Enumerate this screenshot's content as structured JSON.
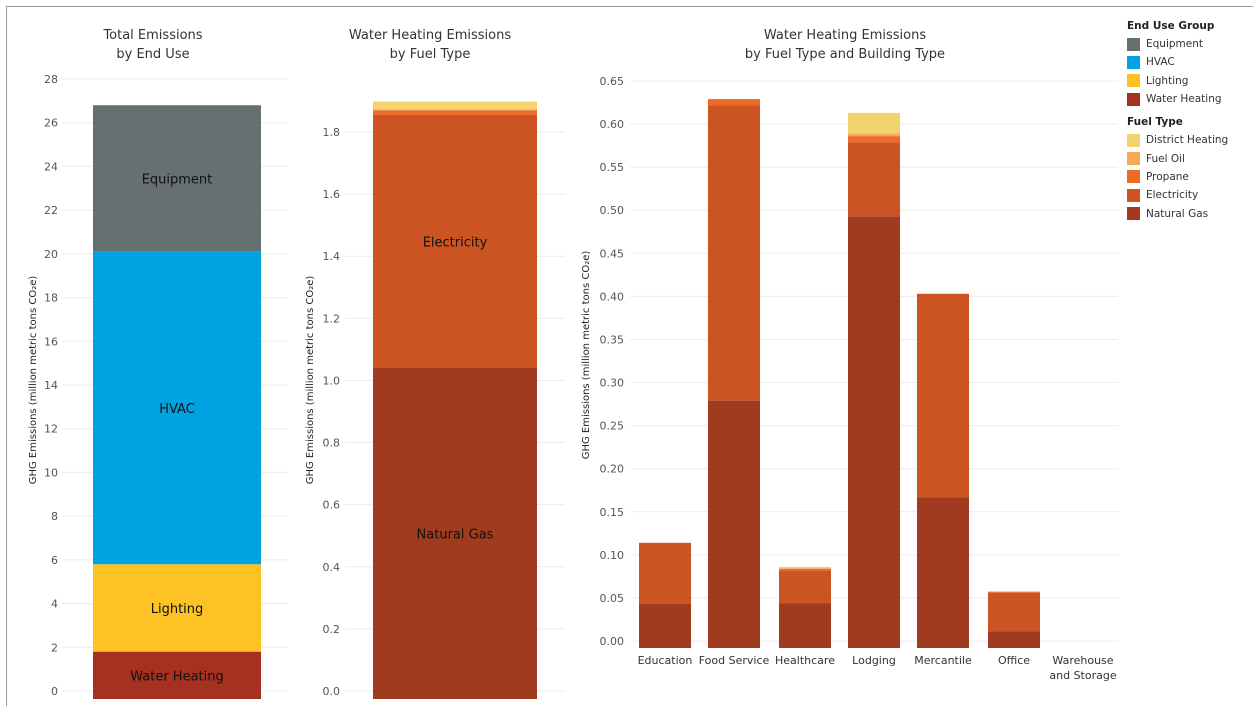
{
  "colors": {
    "Equipment": "#667073",
    "HVAC": "#00a2e2",
    "Lighting": "#fdc223",
    "Water Heating": "#a7311f",
    "District Heating": "#f3d36e",
    "Fuel Oil": "#f8a85a",
    "Propane": "#ef6a25",
    "Electricity": "#cc5422",
    "Natural Gas": "#a03b20"
  },
  "legend": {
    "end_use": {
      "title": "End Use Group",
      "items": [
        "Equipment",
        "HVAC",
        "Lighting",
        "Water Heating"
      ]
    },
    "fuel": {
      "title": "Fuel Type",
      "items": [
        "District Heating",
        "Fuel Oil",
        "Propane",
        "Electricity",
        "Natural Gas"
      ]
    }
  },
  "chart_data": [
    {
      "type": "bar",
      "stacked": true,
      "title_lines": [
        "Total Emissions",
        "by End Use"
      ],
      "ylabel": "GHG Emissions (million metric tons CO₂e)",
      "ylim": [
        0,
        28
      ],
      "yticks": [
        "0",
        "2",
        "4",
        "6",
        "8",
        "10",
        "12",
        "14",
        "16",
        "18",
        "20",
        "22",
        "24",
        "26",
        "28"
      ],
      "segments": [
        {
          "name": "Water Heating",
          "value": 1.8,
          "label": "Water Heating"
        },
        {
          "name": "Lighting",
          "value": 4.0,
          "label": "Lighting"
        },
        {
          "name": "HVAC",
          "value": 14.3,
          "label": "HVAC"
        },
        {
          "name": "Equipment",
          "value": 6.7,
          "label": "Equipment"
        }
      ]
    },
    {
      "type": "bar",
      "stacked": true,
      "title_lines": [
        "Water Heating Emissions",
        "by Fuel Type"
      ],
      "ylabel": "GHG Emissions (million metric tons CO₂e)",
      "ylim": [
        0,
        1.95
      ],
      "yticks": [
        "0.0",
        "0.2",
        "0.4",
        "0.6",
        "0.8",
        "1.0",
        "1.2",
        "1.4",
        "1.6",
        "1.8"
      ],
      "segments": [
        {
          "name": "Natural Gas",
          "value": 1.04,
          "label": "Natural Gas"
        },
        {
          "name": "Electricity",
          "value": 0.815,
          "label": "Electricity"
        },
        {
          "name": "Propane",
          "value": 0.015,
          "label": ""
        },
        {
          "name": "Fuel Oil",
          "value": 0.003,
          "label": ""
        },
        {
          "name": "District Heating",
          "value": 0.025,
          "label": ""
        }
      ]
    },
    {
      "type": "bar",
      "stacked": true,
      "title_lines": [
        "Water Heating Emissions",
        "by Fuel Type and Building Type"
      ],
      "ylabel": "GHG Emissions (million metric tons CO₂e)",
      "ylim": [
        0,
        0.65
      ],
      "yticks": [
        "0.00",
        "0.05",
        "0.10",
        "0.15",
        "0.20",
        "0.25",
        "0.30",
        "0.35",
        "0.40",
        "0.45",
        "0.50",
        "0.55",
        "0.60",
        "0.65"
      ],
      "categories": [
        [
          "Education"
        ],
        [
          "Food Service"
        ],
        [
          "Healthcare"
        ],
        [
          "Lodging"
        ],
        [
          "Mercantile"
        ],
        [
          "Office"
        ],
        [
          "Warehouse",
          "and Storage"
        ]
      ],
      "series": [
        {
          "name": "Natural Gas",
          "values": [
            0.043,
            0.279,
            0.044,
            0.493,
            0.167,
            0.011,
            0.0
          ]
        },
        {
          "name": "Electricity",
          "values": [
            0.071,
            0.343,
            0.038,
            0.086,
            0.236,
            0.045,
            0.0
          ]
        },
        {
          "name": "Propane",
          "values": [
            0.0,
            0.007,
            0.002,
            0.007,
            0.0,
            0.001,
            0.0
          ]
        },
        {
          "name": "Fuel Oil",
          "values": [
            0.0,
            0.0,
            0.0,
            0.003,
            0.0,
            0.0,
            0.0
          ]
        },
        {
          "name": "District Heating",
          "values": [
            0.0,
            0.0,
            0.002,
            0.024,
            0.0,
            0.001,
            0.0
          ]
        }
      ]
    }
  ]
}
